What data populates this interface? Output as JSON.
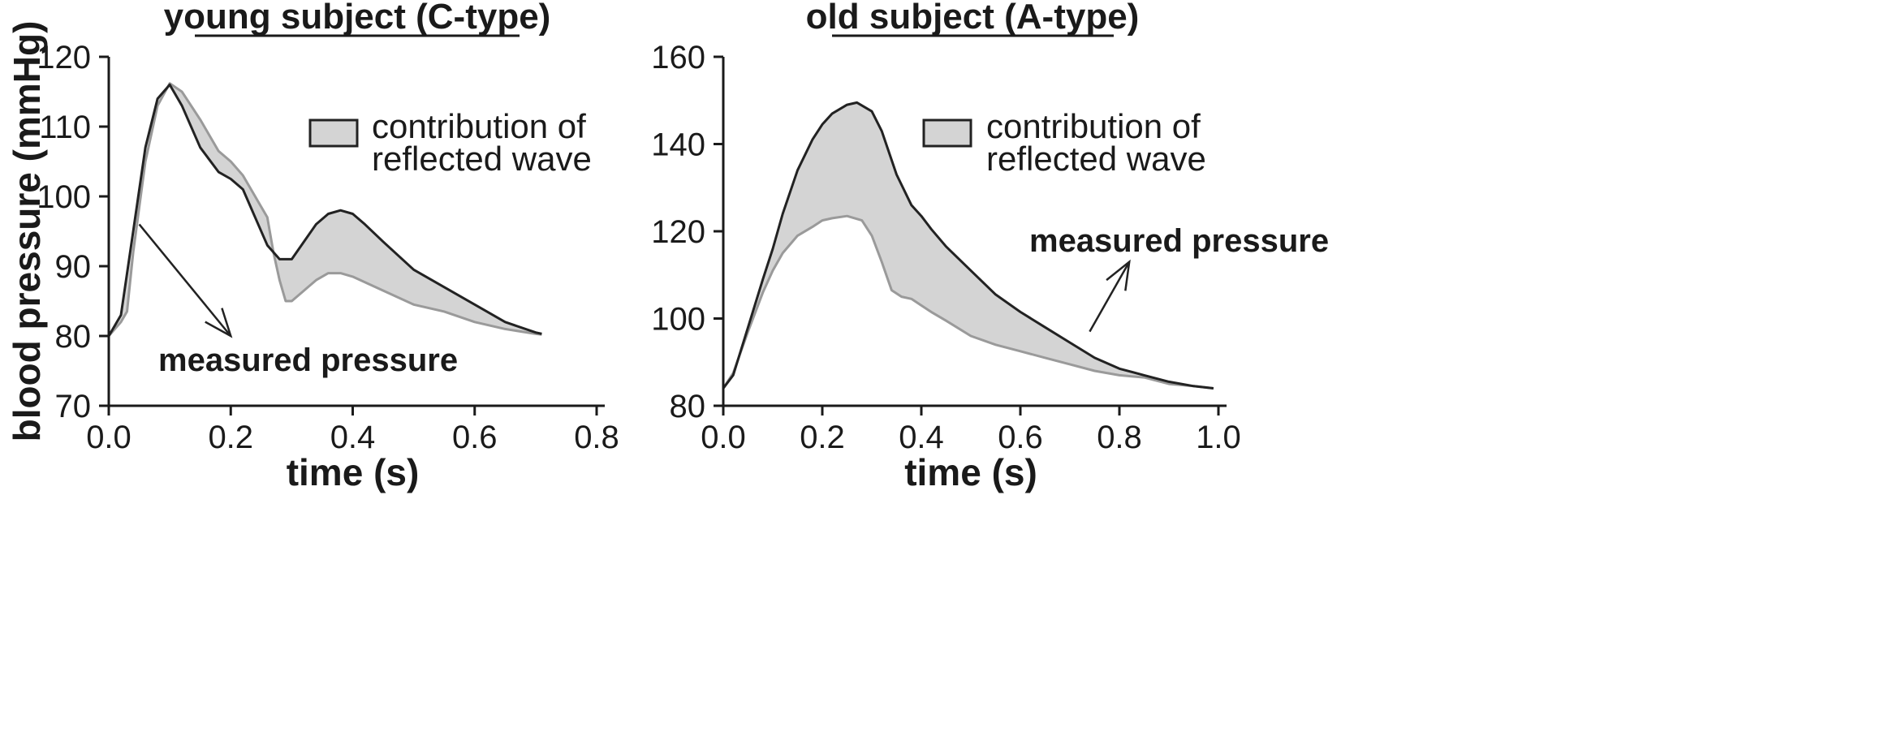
{
  "chart_data": [
    {
      "type": "area",
      "title": "young subject (C-type)",
      "xlabel": "time (s)",
      "ylabel": "blood pressure (mmHg)",
      "xlim": [
        0,
        0.8
      ],
      "ylim": [
        70,
        120
      ],
      "xticks": [
        "0.0",
        "0.2",
        "0.4",
        "0.6",
        "0.8"
      ],
      "yticks": [
        "70",
        "80",
        "90",
        "100",
        "110",
        "120"
      ],
      "grid": false,
      "legend": {
        "position": "top-right",
        "entries": [
          "contribution of",
          "reflected wave"
        ]
      },
      "annotations": [
        {
          "text": "measured pressure",
          "arrow_from": [
            0.05,
            96
          ],
          "arrow_to": [
            0.2,
            80
          ]
        }
      ],
      "series": [
        {
          "x": [
            0.0,
            0.02,
            0.04,
            0.06,
            0.08,
            0.1,
            0.12,
            0.15,
            0.18,
            0.2,
            0.22,
            0.24,
            0.26,
            0.28,
            0.3,
            0.32,
            0.34,
            0.36,
            0.38,
            0.4,
            0.42,
            0.45,
            0.5,
            0.55,
            0.6,
            0.65,
            0.7,
            0.71
          ],
          "y": [
            80,
            83,
            95,
            107,
            114,
            116,
            113,
            107,
            103.5,
            102.5,
            101,
            97,
            93,
            91,
            91,
            93.5,
            96,
            97.5,
            98,
            97.5,
            96,
            93.5,
            89.5,
            87,
            84.5,
            82,
            80.5,
            80.3
          ]
        },
        {
          "x": [
            0.0,
            0.02,
            0.03,
            0.04,
            0.06,
            0.08,
            0.1,
            0.12,
            0.15,
            0.18,
            0.2,
            0.22,
            0.24,
            0.26,
            0.27,
            0.28,
            0.29,
            0.3,
            0.32,
            0.34,
            0.36,
            0.38,
            0.4,
            0.45,
            0.5,
            0.55,
            0.6,
            0.65,
            0.7,
            0.71
          ],
          "y": [
            80,
            82,
            83.5,
            92,
            105,
            113,
            116.2,
            115,
            111,
            106.5,
            105,
            103,
            100,
            97,
            92,
            88,
            85,
            85,
            86.5,
            88,
            89,
            89,
            88.5,
            86.5,
            84.5,
            83.5,
            82,
            81,
            80.3,
            80.2
          ]
        }
      ]
    },
    {
      "type": "area",
      "title": "old subject (A-type)",
      "xlabel": "time (s)",
      "ylabel": "",
      "xlim": [
        0,
        1.0
      ],
      "ylim": [
        80,
        160
      ],
      "xticks": [
        "0.0",
        "0.2",
        "0.4",
        "0.6",
        "0.8",
        "1.0"
      ],
      "yticks": [
        "80",
        "100",
        "120",
        "140",
        "160"
      ],
      "grid": false,
      "legend": {
        "position": "top-right",
        "entries": [
          "contribution of",
          "reflected wave"
        ]
      },
      "annotations": [
        {
          "text": "measured pressure",
          "arrow_from": [
            0.74,
            97
          ],
          "arrow_to": [
            0.82,
            113
          ]
        }
      ],
      "series": [
        {
          "x": [
            0.0,
            0.02,
            0.05,
            0.08,
            0.1,
            0.12,
            0.15,
            0.18,
            0.2,
            0.22,
            0.25,
            0.27,
            0.3,
            0.32,
            0.35,
            0.38,
            0.4,
            0.42,
            0.45,
            0.5,
            0.55,
            0.6,
            0.65,
            0.7,
            0.75,
            0.8,
            0.85,
            0.9,
            0.95,
            0.99
          ],
          "y": [
            84,
            87,
            98,
            109,
            116,
            124,
            134,
            141,
            144.5,
            147,
            149,
            149.5,
            147.5,
            143,
            133,
            126,
            123.5,
            120.5,
            116.5,
            111,
            105.5,
            101.5,
            98,
            94.5,
            91,
            88.5,
            87,
            85.5,
            84.5,
            84
          ]
        },
        {
          "x": [
            0.0,
            0.02,
            0.05,
            0.08,
            0.1,
            0.12,
            0.15,
            0.18,
            0.2,
            0.22,
            0.25,
            0.28,
            0.3,
            0.32,
            0.34,
            0.36,
            0.38,
            0.4,
            0.42,
            0.45,
            0.5,
            0.55,
            0.6,
            0.65,
            0.7,
            0.75,
            0.8,
            0.85,
            0.9,
            0.95,
            0.99
          ],
          "y": [
            84,
            87.5,
            97,
            106,
            111,
            115,
            119,
            121,
            122.5,
            123,
            123.5,
            122.5,
            119,
            113,
            106.5,
            105,
            104.5,
            103,
            101.5,
            99.5,
            96,
            94,
            92.5,
            91,
            89.5,
            88,
            87,
            86.5,
            85,
            84.5,
            84
          ]
        }
      ]
    }
  ]
}
